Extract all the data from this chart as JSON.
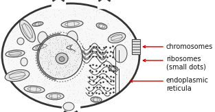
{
  "bg_color": "#ffffff",
  "cell_color": "#f2f2f2",
  "cell_edge_color": "#333333",
  "dark_line": "#444444",
  "mid_line": "#666666",
  "light_line": "#888888",
  "arrow_color": "#cc0000",
  "text_color": "#111111",
  "label_chromosomes": "chromosomes",
  "label_ribosomes": "ribosomes\n(small dots)",
  "label_endoplasmic": "endoplasmic\nreticula",
  "figsize": [
    3.13,
    1.63
  ],
  "dpi": 100,
  "label_fontsize": 7.0
}
